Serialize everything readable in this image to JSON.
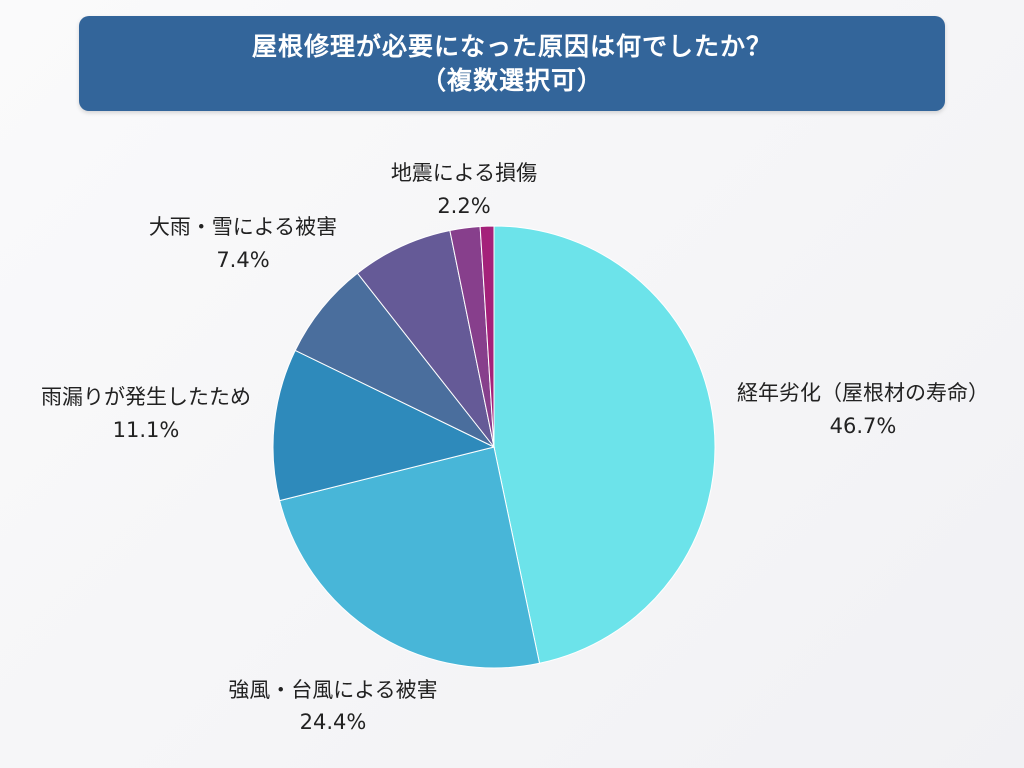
{
  "chart_data": {
    "type": "pie",
    "title": "屋根修理が必要になった原因は何でしたか？",
    "subtitle": "（複数選択可）",
    "slices": [
      {
        "label": "経年劣化（屋根材の寿命）",
        "value": 46.7,
        "display": "46.7%",
        "color": "#6ce3ea"
      },
      {
        "label": "強風・台風による被害",
        "value": 24.4,
        "display": "24.4%",
        "color": "#48b6d8"
      },
      {
        "label": "雨漏りが発生したため",
        "value": 11.1,
        "display": "11.1%",
        "color": "#2e8abb"
      },
      {
        "label": "",
        "value": 7.2,
        "display": "",
        "color": "#4a6e9d"
      },
      {
        "label": "大雨・雪による被害",
        "value": 7.4,
        "display": "7.4%",
        "color": "#655a97"
      },
      {
        "label": "地震による損傷",
        "value": 2.2,
        "display": "2.2%",
        "color": "#873f8c"
      },
      {
        "label": "",
        "value": 1.0,
        "display": "",
        "color": "#a4217a"
      }
    ],
    "start_angle_deg": 0,
    "direction": "clockwise",
    "legend": "none"
  }
}
